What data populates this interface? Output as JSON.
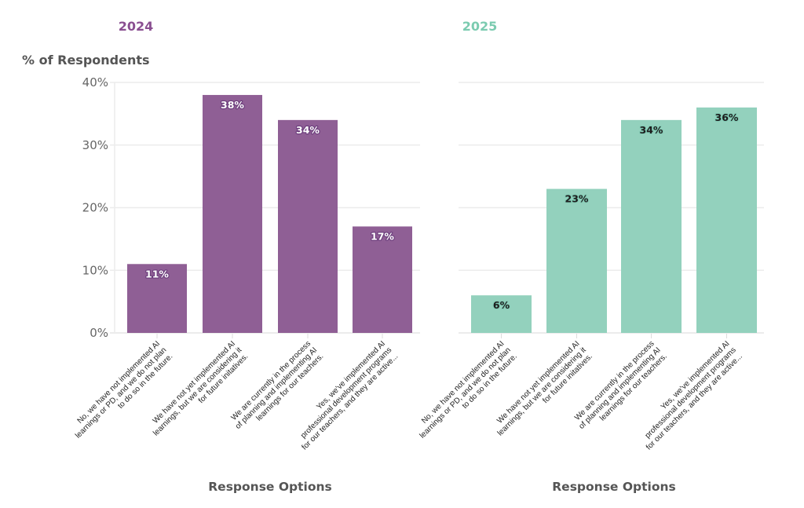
{
  "chart_data": [
    {
      "type": "bar",
      "title": "2024",
      "ylabel": "% of Respondents",
      "xlabel": "Response Options",
      "ylim": [
        0,
        40
      ],
      "yticks": [
        "0%",
        "10%",
        "20%",
        "30%",
        "40%"
      ],
      "grid": true,
      "color": "#8f5f95",
      "categories": [
        [
          "No, we have not implemented AI",
          "learnings or PD, and we do not plan",
          "to do so in the future."
        ],
        [
          "We have not yet implemented AI",
          "learnings, but we are considering it",
          "for future initatives."
        ],
        [
          "We are currently in the process",
          "of planning and implementing AI",
          "learnings for our teachers."
        ],
        [
          "Yes, we've implemented AI",
          "professional development programs",
          "for our teachers, and they are active..."
        ]
      ],
      "values": [
        11,
        38,
        34,
        17
      ],
      "data_labels": [
        "11%",
        "38%",
        "34%",
        "17%"
      ]
    },
    {
      "type": "bar",
      "title": "2025",
      "ylabel": "",
      "xlabel": "Response Options",
      "ylim": [
        0,
        40
      ],
      "yticks": [],
      "grid": true,
      "color": "#93d1bd",
      "categories": [
        [
          "No, we have not implemented AI",
          "learnings or PD, and we do not plan",
          "to do so in the future."
        ],
        [
          "We have not yet implemented AI",
          "learnings, but we are considering it",
          "for future initatives."
        ],
        [
          "We are currently in the process",
          "of planning and implementing AI",
          "learnings for our teachers."
        ],
        [
          "Yes, we've implemented AI",
          "professional development programs",
          "for our teachers, and they are active..."
        ]
      ],
      "values": [
        6,
        23,
        34,
        36
      ],
      "data_labels": [
        "6%",
        "23%",
        "34%",
        "36%"
      ]
    }
  ],
  "colors": {
    "title_2024": "#8a4f91",
    "title_2025": "#7bcbb0",
    "grid": "#ececec",
    "axis_text": "#666666"
  }
}
